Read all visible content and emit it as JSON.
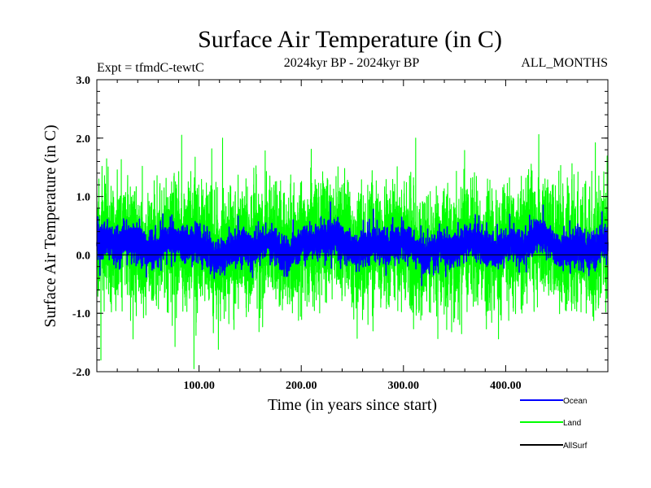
{
  "chart_data": {
    "type": "line",
    "title": "Surface Air Temperature (in C)",
    "subtitle_left": "Expt = tfmdC-tewtC",
    "subtitle_center": "2024kyr BP - 2024kyr BP",
    "subtitle_right": "ALL_MONTHS",
    "xlabel": "Time (in years since start)",
    "ylabel": "Surface Air Temperature (in C)",
    "xlim": [
      0,
      500
    ],
    "ylim": [
      -2.0,
      3.0
    ],
    "xticks": [
      100,
      200,
      300,
      400
    ],
    "xtick_labels": [
      "100.00",
      "200.00",
      "300.00",
      "400.00"
    ],
    "yticks": [
      -2.0,
      -1.0,
      0.0,
      1.0,
      2.0,
      3.0
    ],
    "ytick_labels": [
      "-2.0",
      "-1.0",
      "0.0",
      "1.0",
      "2.0",
      "3.0"
    ],
    "zero_line": true,
    "series": [
      {
        "name": "Land",
        "color": "#00ff00",
        "approx_mean": 0.15,
        "approx_std": 0.5,
        "extrema": [
          {
            "x": 2,
            "y": 1.3
          },
          {
            "x": 4,
            "y": -1.8
          },
          {
            "x": 83,
            "y": 2.05
          },
          {
            "x": 95,
            "y": -1.95
          },
          {
            "x": 123,
            "y": 2.0
          },
          {
            "x": 312,
            "y": 2.0
          }
        ]
      },
      {
        "name": "Ocean",
        "color": "#0000ff",
        "approx_mean": 0.15,
        "approx_std": 0.15,
        "extrema": [
          {
            "x": 1,
            "y": 0.65
          },
          {
            "x": 192,
            "y": 0.6
          },
          {
            "x": 3,
            "y": -0.35
          }
        ]
      },
      {
        "name": "AllSurf",
        "color": "#000000",
        "approx_mean": 0.0,
        "approx_std": 0.0,
        "extrema": []
      }
    ],
    "legend_position": "bottom-right"
  }
}
